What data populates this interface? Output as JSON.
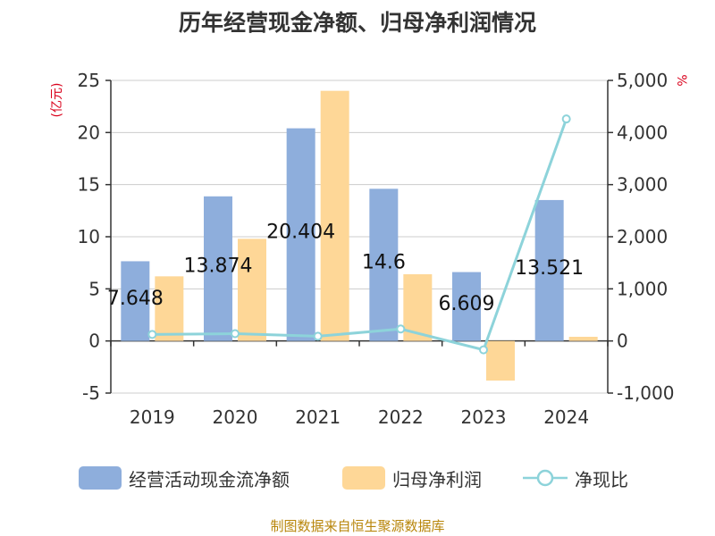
{
  "title": "历年经营现金净额、归母净利润情况",
  "source": "制图数据来自恒生聚源数据库",
  "colors": {
    "cash": "#8eaedc",
    "profit": "#fed797",
    "ratio": "#8dd3da",
    "unit": "#d9001b"
  },
  "legend": [
    {
      "name": "经营活动现金流净额",
      "type": "bar",
      "color": "#8eaedc"
    },
    {
      "name": "归母净利润",
      "type": "bar",
      "color": "#fed797"
    },
    {
      "name": "净现比",
      "type": "line",
      "color": "#8dd3da"
    }
  ],
  "chart_data": {
    "type": "bar",
    "title": "历年经营现金净额、归母净利润情况",
    "categories": [
      "2019",
      "2020",
      "2021",
      "2022",
      "2023",
      "2024"
    ],
    "y_left": {
      "unit": "(亿元)",
      "ylim": [
        -5,
        25
      ],
      "ticks": [
        "-5",
        "0",
        "5",
        "10",
        "15",
        "20",
        "25"
      ],
      "tick_values": [
        -5,
        0,
        5,
        10,
        15,
        20,
        25
      ]
    },
    "y_right": {
      "unit": "%",
      "ylim": [
        -1000,
        5000
      ],
      "ticks": [
        "-1,000",
        "0",
        "1,000",
        "2,000",
        "3,000",
        "4,000",
        "5,000"
      ],
      "tick_values": [
        -1000,
        0,
        1000,
        2000,
        3000,
        4000,
        5000
      ]
    },
    "series": [
      {
        "name": "经营活动现金流净额",
        "type": "bar",
        "axis": "left",
        "values": [
          7.648,
          13.874,
          20.404,
          14.6,
          6.609,
          13.521
        ],
        "labels": [
          "7.648",
          "13.874",
          "20.404",
          "14.6",
          "6.609",
          "13.521"
        ]
      },
      {
        "name": "归母净利润",
        "type": "bar",
        "axis": "left",
        "values": [
          6.2,
          9.8,
          24.0,
          6.4,
          -3.8,
          0.4
        ]
      },
      {
        "name": "净现比",
        "type": "line",
        "axis": "right",
        "values": [
          125,
          140,
          90,
          230,
          -170,
          4260
        ]
      }
    ],
    "grid": true,
    "legend_position": "bottom"
  }
}
